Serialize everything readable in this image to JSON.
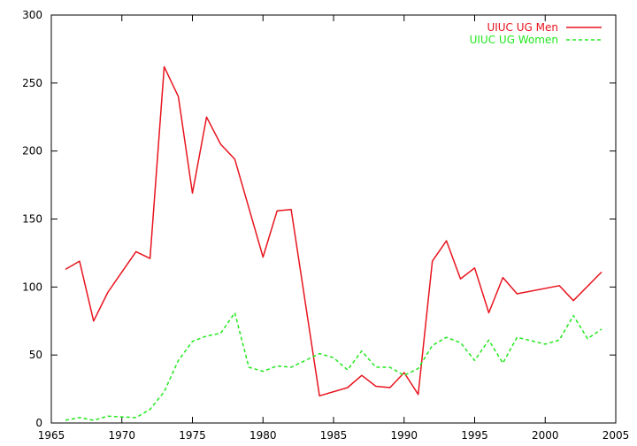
{
  "chart_data": {
    "type": "line",
    "title": "",
    "xlabel": "",
    "ylabel": "",
    "xlim": [
      1965,
      2005
    ],
    "ylim": [
      0,
      300
    ],
    "x_ticks": [
      1965,
      1970,
      1975,
      1980,
      1985,
      1990,
      1995,
      2000,
      2005
    ],
    "y_ticks": [
      0,
      50,
      100,
      150,
      200,
      250,
      300
    ],
    "grid": false,
    "legend": "top-right",
    "series": [
      {
        "name": "UIUC UG Men",
        "color": "#e8141e",
        "style": "solid",
        "points": [
          [
            1966,
            113
          ],
          [
            1967,
            119
          ],
          [
            1968,
            75
          ],
          [
            1969,
            96
          ],
          [
            1971,
            126
          ],
          [
            1972,
            121
          ],
          [
            1973,
            262
          ],
          [
            1974,
            240
          ],
          [
            1975,
            169
          ],
          [
            1976,
            225
          ],
          [
            1977,
            205
          ],
          [
            1978,
            194
          ],
          [
            1980,
            122
          ],
          [
            1981,
            156
          ],
          [
            1982,
            157
          ],
          [
            1984,
            20
          ],
          [
            1986,
            26
          ],
          [
            1987,
            35
          ],
          [
            1988,
            27
          ],
          [
            1989,
            26
          ],
          [
            1990,
            37
          ],
          [
            1991,
            21
          ],
          [
            1992,
            119
          ],
          [
            1993,
            134
          ],
          [
            1994,
            106
          ],
          [
            1995,
            114
          ],
          [
            1996,
            81
          ],
          [
            1997,
            107
          ],
          [
            1998,
            95
          ],
          [
            2001,
            101
          ],
          [
            2002,
            90
          ],
          [
            2004,
            111
          ]
        ]
      },
      {
        "name": "UIUC UG Women",
        "color": "#22e81e",
        "style": "dashed",
        "points": [
          [
            1966,
            2
          ],
          [
            1967,
            4
          ],
          [
            1968,
            2
          ],
          [
            1969,
            5
          ],
          [
            1971,
            4
          ],
          [
            1972,
            10
          ],
          [
            1973,
            23
          ],
          [
            1974,
            46
          ],
          [
            1975,
            60
          ],
          [
            1976,
            64
          ],
          [
            1977,
            66
          ],
          [
            1978,
            81
          ],
          [
            1979,
            41
          ],
          [
            1980,
            38
          ],
          [
            1981,
            42
          ],
          [
            1982,
            41
          ],
          [
            1983,
            46
          ],
          [
            1984,
            51
          ],
          [
            1985,
            48
          ],
          [
            1986,
            39
          ],
          [
            1987,
            53
          ],
          [
            1988,
            41
          ],
          [
            1989,
            41
          ],
          [
            1990,
            35
          ],
          [
            1991,
            40
          ],
          [
            1992,
            57
          ],
          [
            1993,
            63
          ],
          [
            1994,
            59
          ],
          [
            1995,
            46
          ],
          [
            1996,
            61
          ],
          [
            1997,
            44
          ],
          [
            1998,
            63
          ],
          [
            2000,
            58
          ],
          [
            2001,
            61
          ],
          [
            2002,
            79
          ],
          [
            2003,
            62
          ],
          [
            2004,
            69
          ]
        ]
      }
    ]
  }
}
